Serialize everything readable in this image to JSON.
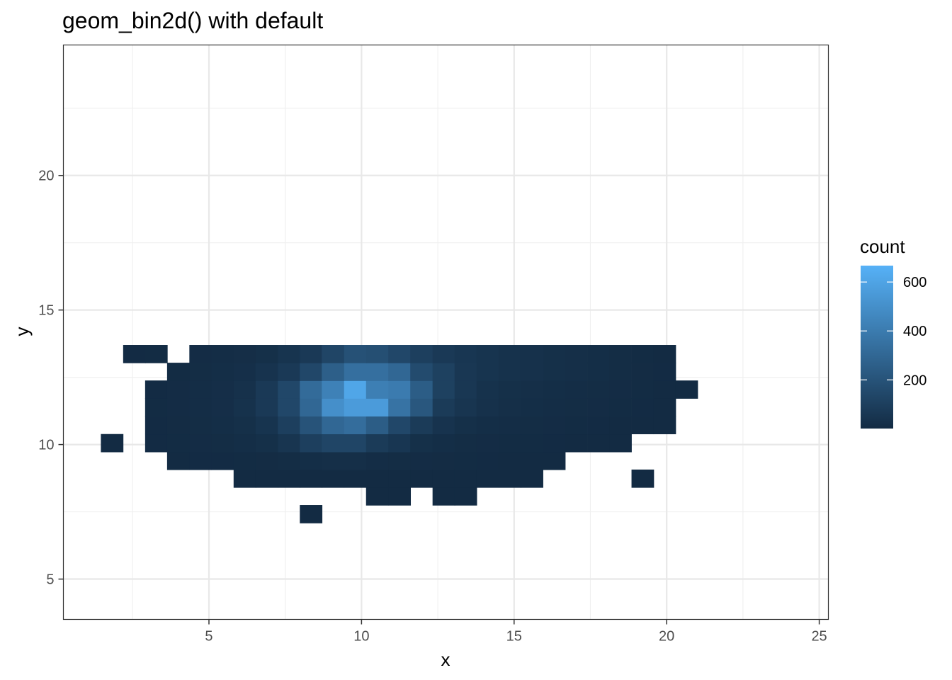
{
  "chart_data": {
    "type": "heatmap",
    "title": "geom_bin2d() with default",
    "xlabel": "x",
    "ylabel": "y",
    "xlim": [
      0.23,
      25.3
    ],
    "ylim": [
      3.5,
      24.85
    ],
    "xticks": [
      5,
      10,
      15,
      20,
      25
    ],
    "yticks": [
      5,
      10,
      15,
      20
    ],
    "xminor": [
      2.5,
      7.5,
      12.5,
      17.5,
      22.5
    ],
    "yminor": [
      7.5,
      12.5,
      17.5,
      22.5
    ],
    "bin_width": {
      "x": 0.7242,
      "y": 0.6618
    },
    "grid": true,
    "legend": {
      "title": "count",
      "position": "right",
      "ticks": [
        "200",
        "400",
        "600"
      ],
      "tick_values": [
        200,
        400,
        600
      ],
      "range": [
        1,
        667
      ],
      "low_color": "#132B43",
      "high_color": "#56B1F7"
    },
    "x_bin_centers": [
      1.82,
      2.55,
      3.27,
      3.99,
      4.72,
      5.44,
      6.17,
      6.89,
      7.62,
      8.34,
      9.06,
      9.79,
      10.51,
      11.24,
      11.96,
      12.69,
      13.41,
      14.13,
      14.86,
      15.58,
      16.31,
      17.03,
      17.76,
      18.48,
      19.21,
      19.93,
      20.65,
      21.38,
      22.1,
      22.83,
      23.55
    ],
    "y_bin_centers": [
      4.77,
      5.43,
      6.09,
      6.76,
      7.42,
      8.08,
      8.74,
      9.4,
      10.06,
      10.73,
      11.39,
      12.05,
      12.71,
      13.37,
      14.04,
      14.7,
      15.36,
      16.02,
      16.68,
      17.35,
      18.01,
      18.67,
      19.33,
      19.99,
      20.65,
      21.32,
      21.98,
      22.64,
      23.3,
      23.96
    ],
    "counts": [
      [
        9,
        4,
        0
      ],
      [
        12,
        5,
        0
      ],
      [
        13,
        5,
        0
      ],
      [
        15,
        5,
        0
      ],
      [
        16,
        5,
        0
      ],
      [
        6,
        6,
        1
      ],
      [
        7,
        6,
        2
      ],
      [
        8,
        6,
        2
      ],
      [
        9,
        6,
        2
      ],
      [
        10,
        6,
        1
      ],
      [
        11,
        6,
        2
      ],
      [
        12,
        6,
        2
      ],
      [
        13,
        6,
        2
      ],
      [
        14,
        6,
        1
      ],
      [
        15,
        6,
        1
      ],
      [
        16,
        6,
        1
      ],
      [
        17,
        6,
        1
      ],
      [
        18,
        6,
        1
      ],
      [
        19,
        6,
        1
      ],
      [
        24,
        6,
        0
      ],
      [
        3,
        7,
        2
      ],
      [
        4,
        7,
        3
      ],
      [
        5,
        7,
        3
      ],
      [
        6,
        7,
        4
      ],
      [
        7,
        7,
        6
      ],
      [
        8,
        7,
        10
      ],
      [
        9,
        7,
        15
      ],
      [
        10,
        7,
        20
      ],
      [
        11,
        7,
        20
      ],
      [
        12,
        7,
        12
      ],
      [
        13,
        7,
        10
      ],
      [
        14,
        7,
        8
      ],
      [
        15,
        7,
        6
      ],
      [
        16,
        7,
        4
      ],
      [
        17,
        7,
        3
      ],
      [
        18,
        7,
        2
      ],
      [
        19,
        7,
        2
      ],
      [
        20,
        7,
        1
      ],
      [
        0,
        8,
        0
      ],
      [
        2,
        8,
        3
      ],
      [
        3,
        8,
        5
      ],
      [
        4,
        8,
        8
      ],
      [
        5,
        8,
        10
      ],
      [
        6,
        8,
        15
      ],
      [
        7,
        8,
        25
      ],
      [
        8,
        8,
        50
      ],
      [
        9,
        8,
        100
      ],
      [
        10,
        8,
        130
      ],
      [
        11,
        8,
        130
      ],
      [
        12,
        8,
        80
      ],
      [
        13,
        8,
        55
      ],
      [
        14,
        8,
        25
      ],
      [
        15,
        8,
        15
      ],
      [
        16,
        8,
        10
      ],
      [
        17,
        8,
        7
      ],
      [
        18,
        8,
        5
      ],
      [
        19,
        8,
        4
      ],
      [
        20,
        8,
        3
      ],
      [
        21,
        8,
        2
      ],
      [
        22,
        8,
        1
      ],
      [
        23,
        8,
        1
      ],
      [
        2,
        9,
        3
      ],
      [
        3,
        9,
        6
      ],
      [
        4,
        9,
        10
      ],
      [
        5,
        9,
        15
      ],
      [
        6,
        9,
        25
      ],
      [
        7,
        9,
        45
      ],
      [
        8,
        9,
        100
      ],
      [
        9,
        9,
        200
      ],
      [
        10,
        9,
        300
      ],
      [
        11,
        9,
        330
      ],
      [
        12,
        9,
        250
      ],
      [
        13,
        9,
        140
      ],
      [
        14,
        9,
        80
      ],
      [
        15,
        9,
        40
      ],
      [
        16,
        9,
        25
      ],
      [
        17,
        9,
        15
      ],
      [
        18,
        9,
        12
      ],
      [
        19,
        9,
        10
      ],
      [
        20,
        9,
        8
      ],
      [
        21,
        9,
        5
      ],
      [
        22,
        9,
        3
      ],
      [
        23,
        9,
        2
      ],
      [
        24,
        9,
        1
      ],
      [
        25,
        9,
        1
      ],
      [
        2,
        10,
        4
      ],
      [
        3,
        10,
        8
      ],
      [
        4,
        10,
        12
      ],
      [
        5,
        10,
        18
      ],
      [
        6,
        10,
        35
      ],
      [
        7,
        10,
        70
      ],
      [
        8,
        10,
        140
      ],
      [
        9,
        10,
        300
      ],
      [
        10,
        10,
        500
      ],
      [
        11,
        10,
        560
      ],
      [
        12,
        10,
        560
      ],
      [
        13,
        10,
        360
      ],
      [
        14,
        10,
        220
      ],
      [
        15,
        10,
        80
      ],
      [
        16,
        10,
        50
      ],
      [
        17,
        10,
        30
      ],
      [
        18,
        10,
        20
      ],
      [
        19,
        10,
        15
      ],
      [
        20,
        10,
        12
      ],
      [
        21,
        10,
        10
      ],
      [
        22,
        10,
        8
      ],
      [
        23,
        10,
        5
      ],
      [
        24,
        10,
        3
      ],
      [
        25,
        10,
        2
      ],
      [
        2,
        11,
        3
      ],
      [
        3,
        11,
        7
      ],
      [
        4,
        11,
        12
      ],
      [
        5,
        11,
        18
      ],
      [
        6,
        11,
        30
      ],
      [
        7,
        11,
        70
      ],
      [
        8,
        11,
        140
      ],
      [
        9,
        11,
        320
      ],
      [
        10,
        11,
        430
      ],
      [
        11,
        11,
        610
      ],
      [
        12,
        11,
        420
      ],
      [
        13,
        11,
        400
      ],
      [
        14,
        11,
        250
      ],
      [
        15,
        11,
        110
      ],
      [
        16,
        11,
        60
      ],
      [
        17,
        11,
        35
      ],
      [
        18,
        11,
        25
      ],
      [
        19,
        11,
        20
      ],
      [
        20,
        11,
        15
      ],
      [
        21,
        11,
        12
      ],
      [
        22,
        11,
        10
      ],
      [
        23,
        11,
        7
      ],
      [
        24,
        11,
        4
      ],
      [
        25,
        11,
        2
      ],
      [
        26,
        11,
        1
      ],
      [
        3,
        12,
        4
      ],
      [
        4,
        12,
        10
      ],
      [
        5,
        12,
        14
      ],
      [
        6,
        12,
        22
      ],
      [
        7,
        12,
        40
      ],
      [
        8,
        12,
        70
      ],
      [
        9,
        12,
        140
      ],
      [
        10,
        12,
        260
      ],
      [
        11,
        12,
        340
      ],
      [
        12,
        12,
        340
      ],
      [
        13,
        12,
        300
      ],
      [
        14,
        12,
        160
      ],
      [
        15,
        12,
        110
      ],
      [
        16,
        12,
        60
      ],
      [
        17,
        12,
        45
      ],
      [
        18,
        12,
        35
      ],
      [
        19,
        12,
        30
      ],
      [
        20,
        12,
        25
      ],
      [
        21,
        12,
        20
      ],
      [
        22,
        12,
        15
      ],
      [
        23,
        12,
        10
      ],
      [
        24,
        12,
        6
      ],
      [
        25,
        12,
        3
      ],
      [
        1,
        13,
        3
      ],
      [
        2,
        13,
        4
      ],
      [
        4,
        13,
        8
      ],
      [
        5,
        13,
        12
      ],
      [
        6,
        13,
        16
      ],
      [
        7,
        13,
        25
      ],
      [
        8,
        13,
        45
      ],
      [
        9,
        13,
        70
      ],
      [
        10,
        13,
        130
      ],
      [
        11,
        13,
        190
      ],
      [
        12,
        13,
        180
      ],
      [
        13,
        13,
        140
      ],
      [
        14,
        13,
        100
      ],
      [
        15,
        13,
        70
      ],
      [
        16,
        13,
        55
      ],
      [
        17,
        13,
        45
      ],
      [
        18,
        13,
        35
      ],
      [
        19,
        13,
        30
      ],
      [
        20,
        13,
        25
      ],
      [
        21,
        13,
        20
      ],
      [
        22,
        13,
        15
      ],
      [
        23,
        13,
        10
      ],
      [
        24,
        13,
        5
      ],
      [
        25,
        13,
        2
      ]
    ]
  }
}
